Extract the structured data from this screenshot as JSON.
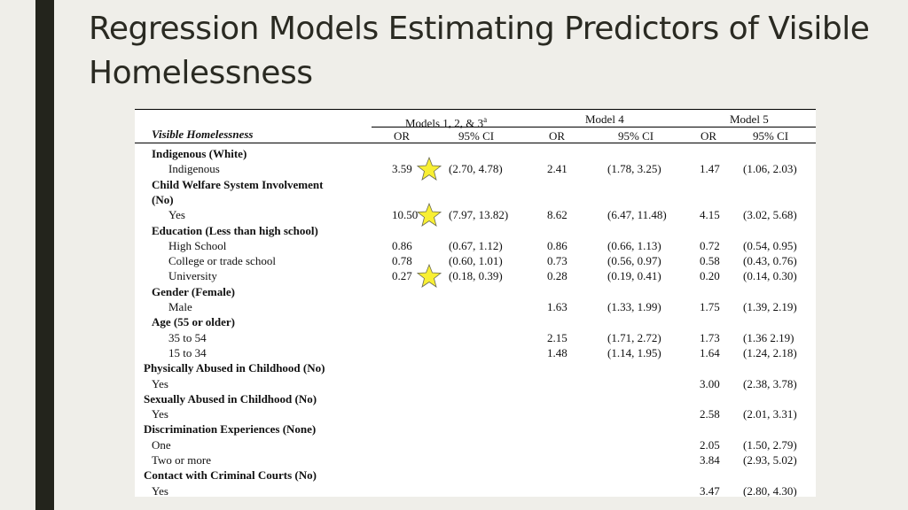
{
  "title": "Regression Models Estimating Predictors of Visible Homelessness",
  "colors": {
    "bar": "#23241c",
    "background": "#efeee9",
    "star_fill": "#f8ef33",
    "star_stroke": "#6b6b55"
  },
  "table": {
    "group_headers": [
      "Models 1, 2, & 3",
      "Model 4",
      "Model 5"
    ],
    "group_header_superscript": "a",
    "row_label_header": "Visible Homelessness",
    "sub_headers": [
      "OR",
      "95% CI",
      "OR",
      "95% CI",
      "OR",
      "95% CI"
    ],
    "rows": [
      {
        "label": "Indigenous (White)",
        "bold": true,
        "indent": 1
      },
      {
        "label": "Indigenous",
        "indent": 2,
        "values": [
          "3.59",
          "(2.70, 4.78)",
          "2.41",
          "(1.78, 3.25)",
          "1.47",
          "(1.06, 2.03)"
        ],
        "star": true
      },
      {
        "label": "Child Welfare System Involvement",
        "bold": true,
        "indent": 1
      },
      {
        "label": "(No)",
        "bold": true,
        "indent": 1
      },
      {
        "label": "Yes",
        "indent": 2,
        "values": [
          "10.50",
          "(7.97, 13.82)",
          "8.62",
          "(6.47, 11.48)",
          "4.15",
          "(3.02, 5.68)"
        ],
        "star": true
      },
      {
        "label": "Education (Less than high school)",
        "bold": true,
        "indent": 1
      },
      {
        "label": "High School",
        "indent": 2,
        "values": [
          "0.86",
          "(0.67, 1.12)",
          "0.86",
          "(0.66, 1.13)",
          "0.72",
          "(0.54, 0.95)"
        ]
      },
      {
        "label": "College or trade school",
        "indent": 2,
        "values": [
          "0.78",
          "(0.60, 1.01)",
          "0.73",
          "(0.56, 0.97)",
          "0.58",
          "(0.43, 0.76)"
        ]
      },
      {
        "label": "University",
        "indent": 2,
        "values": [
          "0.27",
          "(0.18, 0.39)",
          "0.28",
          "(0.19, 0.41)",
          "0.20",
          "(0.14, 0.30)"
        ],
        "star": true
      },
      {
        "label": "Gender (Female)",
        "bold": true,
        "indent": 1
      },
      {
        "label": "Male",
        "indent": 2,
        "values": [
          "",
          "",
          "1.63",
          "(1.33, 1.99)",
          "1.75",
          "(1.39, 2.19)"
        ]
      },
      {
        "label": "Age (55 or older)",
        "bold": true,
        "indent": 1
      },
      {
        "label": "35 to 54",
        "indent": 2,
        "values": [
          "",
          "",
          "2.15",
          "(1.71, 2.72)",
          "1.73",
          "(1.36 2.19)"
        ]
      },
      {
        "label": "15 to 34",
        "indent": 2,
        "values": [
          "",
          "",
          "1.48",
          "(1.14, 1.95)",
          "1.64",
          "(1.24, 2.18)"
        ]
      },
      {
        "label": "Physically Abused in Childhood (No)",
        "bold": true,
        "indent": 0
      },
      {
        "label": "Yes",
        "indent": 1,
        "values": [
          "",
          "",
          "",
          "",
          "3.00",
          "(2.38, 3.78)"
        ]
      },
      {
        "label": "Sexually Abused in Childhood (No)",
        "bold": true,
        "indent": 0
      },
      {
        "label": "Yes",
        "indent": 1,
        "values": [
          "",
          "",
          "",
          "",
          "2.58",
          "(2.01, 3.31)"
        ]
      },
      {
        "label": "Discrimination Experiences (None)",
        "bold": true,
        "indent": 0
      },
      {
        "label": "One",
        "indent": 1,
        "values": [
          "",
          "",
          "",
          "",
          "2.05",
          "(1.50, 2.79)"
        ]
      },
      {
        "label": "Two or more",
        "indent": 1,
        "values": [
          "",
          "",
          "",
          "",
          "3.84",
          "(2.93, 5.02)"
        ]
      },
      {
        "label": "Contact with Criminal Courts (No)",
        "bold": true,
        "indent": 0
      },
      {
        "label": "Yes",
        "indent": 1,
        "values": [
          "",
          "",
          "",
          "",
          "3.47",
          "(2.80, 4.30)"
        ]
      }
    ]
  }
}
